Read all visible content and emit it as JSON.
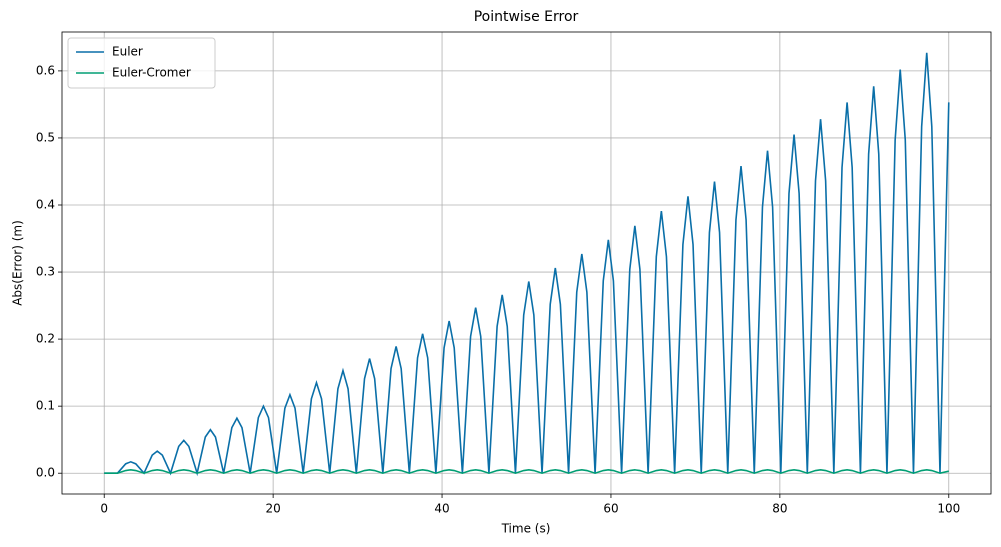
{
  "chart_data": {
    "type": "line",
    "title": "Pointwise Error",
    "xlabel": "Time (s)",
    "ylabel": "Abs(Error) (m)",
    "x": [
      0,
      1.57,
      2.54,
      3.14,
      3.74,
      4.71,
      5.68,
      6.28,
      6.88,
      7.85,
      8.82,
      9.42,
      10.02,
      11.0,
      11.97,
      12.57,
      13.17,
      14.14,
      15.11,
      15.71,
      16.31,
      17.28,
      18.25,
      18.85,
      19.45,
      20.42,
      21.39,
      21.99,
      22.59,
      23.56,
      24.53,
      25.13,
      25.73,
      26.7,
      27.67,
      28.27,
      28.87,
      29.85,
      30.82,
      31.42,
      32.02,
      32.99,
      33.96,
      34.56,
      35.16,
      36.13,
      37.1,
      37.7,
      38.3,
      39.27,
      40.24,
      40.84,
      41.44,
      42.41,
      43.38,
      43.98,
      44.58,
      45.55,
      46.52,
      47.12,
      47.72,
      48.69,
      49.67,
      50.27,
      50.87,
      51.84,
      52.81,
      53.41,
      54.01,
      54.98,
      55.95,
      56.55,
      57.15,
      58.12,
      59.09,
      59.69,
      60.29,
      61.26,
      62.23,
      62.83,
      63.43,
      64.4,
      65.37,
      65.97,
      66.57,
      67.54,
      68.52,
      69.12,
      69.72,
      70.69,
      71.66,
      72.26,
      72.86,
      73.83,
      74.8,
      75.4,
      76.0,
      76.97,
      77.94,
      78.54,
      79.14,
      80.11,
      81.08,
      81.68,
      82.28,
      83.25,
      84.22,
      84.82,
      85.42,
      86.39,
      87.36,
      87.96,
      88.56,
      89.54,
      90.51,
      91.11,
      91.71,
      92.68,
      93.65,
      94.25,
      94.85,
      95.82,
      96.79,
      97.39,
      97.99,
      98.96,
      100
    ],
    "series": [
      {
        "name": "Euler",
        "color": "#0a6fa8",
        "values": [
          0,
          0,
          0.014,
          0.017,
          0.014,
          0,
          0.027,
          0.033,
          0.027,
          0,
          0.04,
          0.049,
          0.04,
          0,
          0.054,
          0.065,
          0.054,
          0,
          0.068,
          0.082,
          0.068,
          0,
          0.083,
          0.1,
          0.083,
          0,
          0.097,
          0.117,
          0.097,
          0,
          0.111,
          0.135,
          0.111,
          0,
          0.126,
          0.153,
          0.126,
          0,
          0.141,
          0.171,
          0.141,
          0,
          0.156,
          0.189,
          0.156,
          0,
          0.172,
          0.208,
          0.172,
          0,
          0.187,
          0.227,
          0.187,
          0,
          0.204,
          0.247,
          0.204,
          0,
          0.219,
          0.266,
          0.219,
          0,
          0.236,
          0.286,
          0.236,
          0,
          0.252,
          0.306,
          0.252,
          0,
          0.27,
          0.327,
          0.27,
          0,
          0.287,
          0.348,
          0.287,
          0,
          0.304,
          0.369,
          0.304,
          0,
          0.323,
          0.391,
          0.323,
          0,
          0.341,
          0.413,
          0.341,
          0,
          0.359,
          0.435,
          0.359,
          0,
          0.378,
          0.458,
          0.378,
          0,
          0.397,
          0.481,
          0.397,
          0,
          0.417,
          0.505,
          0.417,
          0,
          0.436,
          0.528,
          0.436,
          0,
          0.456,
          0.553,
          0.456,
          0,
          0.476,
          0.577,
          0.476,
          0,
          0.497,
          0.602,
          0.497,
          0,
          0.517,
          0.627,
          0.517,
          0,
          0.553
        ]
      },
      {
        "name": "Euler-Cromer",
        "color": "#009e73",
        "values": [
          0,
          0,
          0.004,
          0.005,
          0.004,
          0,
          0.004,
          0.005,
          0.004,
          0,
          0.004,
          0.005,
          0.004,
          0,
          0.004,
          0.005,
          0.004,
          0,
          0.004,
          0.005,
          0.004,
          0,
          0.004,
          0.005,
          0.004,
          0,
          0.004,
          0.005,
          0.004,
          0,
          0.004,
          0.005,
          0.004,
          0,
          0.004,
          0.005,
          0.004,
          0,
          0.004,
          0.005,
          0.004,
          0,
          0.004,
          0.005,
          0.004,
          0,
          0.004,
          0.005,
          0.004,
          0,
          0.004,
          0.005,
          0.004,
          0,
          0.004,
          0.005,
          0.004,
          0,
          0.004,
          0.005,
          0.004,
          0,
          0.004,
          0.005,
          0.004,
          0,
          0.004,
          0.005,
          0.004,
          0,
          0.004,
          0.005,
          0.004,
          0,
          0.004,
          0.005,
          0.004,
          0,
          0.004,
          0.005,
          0.004,
          0,
          0.004,
          0.005,
          0.004,
          0,
          0.004,
          0.005,
          0.004,
          0,
          0.004,
          0.005,
          0.004,
          0,
          0.004,
          0.005,
          0.004,
          0,
          0.004,
          0.005,
          0.004,
          0,
          0.004,
          0.005,
          0.004,
          0,
          0.004,
          0.005,
          0.004,
          0,
          0.004,
          0.005,
          0.004,
          0,
          0.004,
          0.005,
          0.004,
          0,
          0.004,
          0.005,
          0.004,
          0,
          0.004,
          0.005,
          0.004,
          0,
          0.003
        ]
      }
    ],
    "xlim": [
      -5,
      105
    ],
    "ylim": [
      -0.031,
      0.658
    ],
    "xticks": [
      0,
      20,
      40,
      60,
      80,
      100
    ],
    "yticks": [
      {
        "value": 0,
        "label": "0.0"
      },
      0.1,
      0.2,
      0.3,
      0.4,
      0.5,
      0.6
    ],
    "grid": true,
    "legend": "upper-left"
  }
}
